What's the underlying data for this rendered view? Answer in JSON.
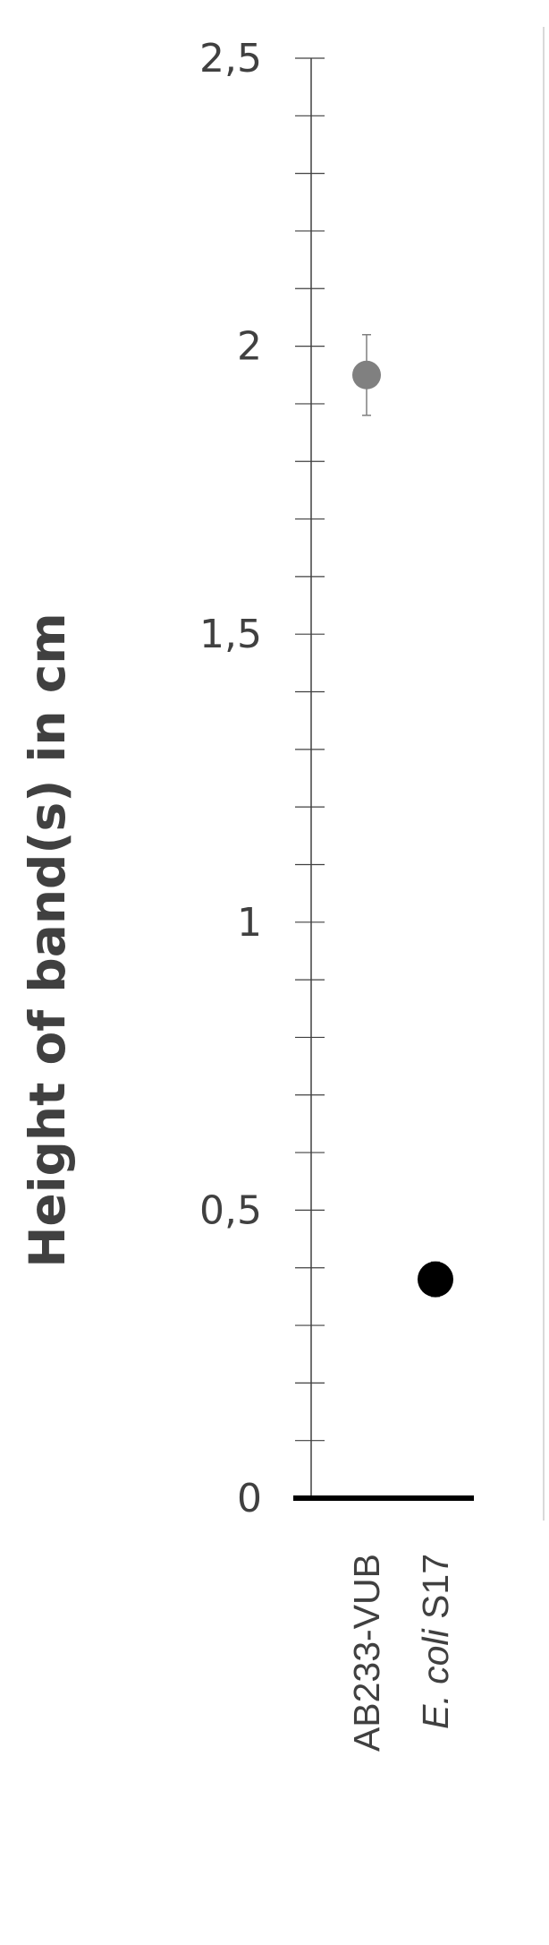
{
  "chart_data": {
    "type": "scatter",
    "ylabel": "Height of band(s) in cm",
    "ylim": [
      0,
      2.5
    ],
    "y_major_ticks": [
      0,
      0.5,
      1,
      1.5,
      2,
      2.5
    ],
    "y_tick_labels": [
      "0",
      "0,5",
      "1",
      "1,5",
      "2",
      "2,5"
    ],
    "y_minor_step": 0.1,
    "grid": false,
    "legend": "none",
    "categories": [
      "AB233-VUB",
      "E. coli S17"
    ],
    "category_label_parts": [
      {
        "italic": "",
        "normal": "AB233-VUB"
      },
      {
        "italic": "E. coli",
        "normal": " S17"
      }
    ],
    "series": [
      {
        "values": [
          1.95,
          0.38
        ],
        "errors": [
          0.07,
          0.03
        ],
        "colors": [
          "#808080",
          "#000000"
        ]
      }
    ]
  }
}
